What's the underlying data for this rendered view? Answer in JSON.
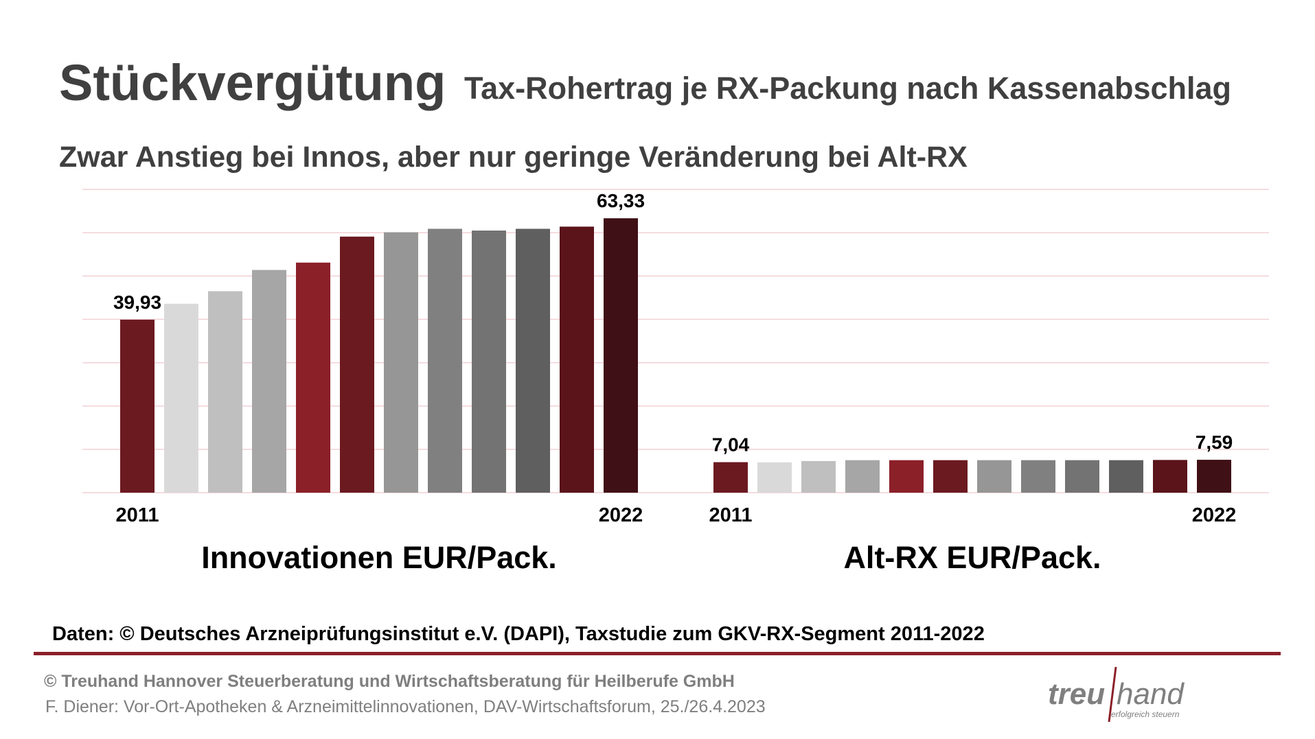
{
  "header": {
    "title": "Stückvergütung",
    "subtitle": "Tax-Rohertrag je RX-Packung nach Kassenabschlag",
    "headline": "Zwar Anstieg bei Innos, aber nur geringe Veränderung bei Alt-RX"
  },
  "chart_data": [
    {
      "type": "bar",
      "xlabel": "Innovationen EUR/Pack.",
      "categories": [
        "2011",
        null,
        null,
        null,
        null,
        null,
        null,
        null,
        null,
        null,
        null,
        "2022"
      ],
      "values": [
        39.93,
        43.6,
        46.5,
        51.4,
        53.1,
        59.1,
        60.1,
        60.9,
        60.5,
        60.9,
        61.4,
        63.33
      ],
      "value_labels": [
        "39,93",
        null,
        null,
        null,
        null,
        null,
        null,
        null,
        null,
        null,
        null,
        "63,33"
      ],
      "colors": [
        "#6b1a20",
        "#d9d9d9",
        "#bfbfbf",
        "#a6a6a6",
        "#8b2029",
        "#6b1a20",
        "#969696",
        "#808080",
        "#737373",
        "#5f5f5f",
        "#5a141a",
        "#3f1015"
      ],
      "ylim": [
        0,
        70
      ],
      "yticks": [
        0,
        10,
        20,
        30,
        40,
        50,
        60,
        70
      ],
      "grid": true
    },
    {
      "type": "bar",
      "xlabel": "Alt-RX EUR/Pack.",
      "categories": [
        "2011",
        null,
        null,
        null,
        null,
        null,
        null,
        null,
        null,
        null,
        null,
        "2022"
      ],
      "values": [
        7.04,
        7.0,
        7.3,
        7.5,
        7.5,
        7.5,
        7.5,
        7.5,
        7.5,
        7.5,
        7.55,
        7.59
      ],
      "value_labels": [
        "7,04",
        null,
        null,
        null,
        null,
        null,
        null,
        null,
        null,
        null,
        null,
        "7,59"
      ],
      "colors": [
        "#6b1a20",
        "#d9d9d9",
        "#bfbfbf",
        "#a6a6a6",
        "#8b2029",
        "#6b1a20",
        "#969696",
        "#808080",
        "#737373",
        "#5f5f5f",
        "#5a141a",
        "#3f1015"
      ],
      "ylim": [
        0,
        70
      ],
      "yticks": [
        0,
        10,
        20,
        30,
        40,
        50,
        60,
        70
      ],
      "grid": true
    }
  ],
  "source": "Daten: © Deutsches Arzneiprüfungsinstitut e.V. (DAPI), Taxstudie zum GKV-RX-Segment 2011-2022",
  "footer": {
    "company": "© Treuhand Hannover Steuerberatung und Wirtschaftsberatung für Heilberufe GmbH",
    "event": "F. Diener: Vor-Ort-Apotheken & Arzneimittelinnovationen, DAV-Wirtschaftsforum, 25./26.4.2023"
  },
  "logo": {
    "left": "treu",
    "right": "hand",
    "tagline": "erfolgreich steuern"
  }
}
